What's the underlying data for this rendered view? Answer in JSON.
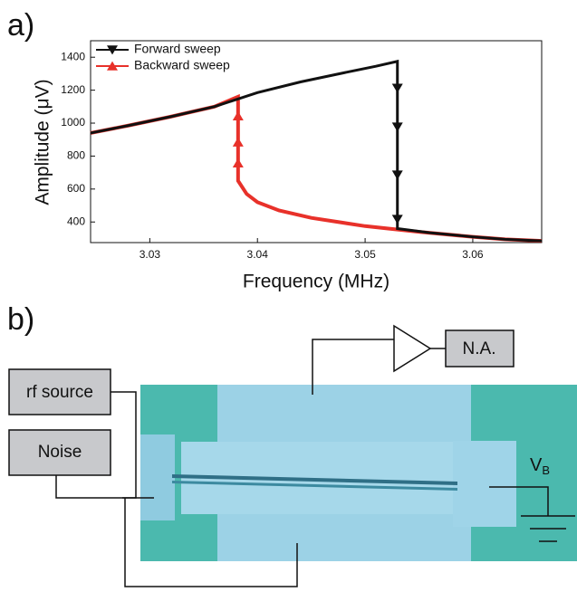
{
  "panel_labels": [
    "a)",
    "b)"
  ],
  "chart_data": {
    "type": "line",
    "xlabel": "Frequency (MHz)",
    "ylabel": "Amplitude (μV)",
    "xlim": [
      3.0245,
      3.0664
    ],
    "ylim": [
      275,
      1500
    ],
    "xticks": [
      3.03,
      3.04,
      3.05,
      3.06
    ],
    "yticks": [
      400,
      600,
      800,
      1000,
      1200,
      1400
    ],
    "legend": "upper left",
    "series": [
      {
        "name": "Forward sweep",
        "color": "#111111",
        "marker": "triangle-down",
        "x": [
          3.0245,
          3.028,
          3.032,
          3.036,
          3.04,
          3.044,
          3.048,
          3.051,
          3.053,
          3.053,
          3.053,
          3.053,
          3.053,
          3.053,
          3.056,
          3.06,
          3.063,
          3.0664
        ],
        "values": [
          940,
          985,
          1040,
          1100,
          1185,
          1250,
          1305,
          1345,
          1375,
          1213,
          977,
          686,
          417,
          360,
          335,
          310,
          295,
          285
        ]
      },
      {
        "name": "Backward sweep",
        "color": "#e8312a",
        "marker": "triangle-up",
        "x": [
          3.0664,
          3.063,
          3.06,
          3.055,
          3.05,
          3.045,
          3.042,
          3.04,
          3.039,
          3.0382,
          3.0382,
          3.0382,
          3.0382,
          3.0382,
          3.036,
          3.032,
          3.028,
          3.0245
        ],
        "values": [
          285,
          295,
          310,
          340,
          375,
          425,
          470,
          520,
          570,
          650,
          757,
          884,
          1043,
          1160,
          1100,
          1040,
          985,
          940
        ]
      }
    ]
  },
  "diagram": {
    "rf_source": "rf source",
    "noise": "Noise",
    "analyzer": "N.A.",
    "bias": {
      "main": "V",
      "sub": "B"
    }
  }
}
